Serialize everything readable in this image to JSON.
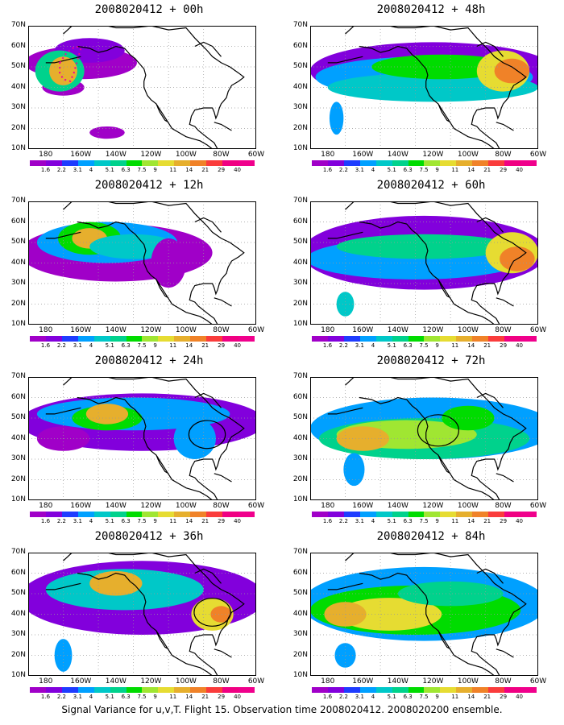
{
  "panels": [
    {
      "title": "2008020412 + 00h"
    },
    {
      "title": "2008020412 + 48h"
    },
    {
      "title": "2008020412 + 12h"
    },
    {
      "title": "2008020412 + 60h"
    },
    {
      "title": "2008020412 + 24h"
    },
    {
      "title": "2008020412 + 72h"
    },
    {
      "title": "2008020412 + 36h"
    },
    {
      "title": "2008020412 + 84h"
    }
  ],
  "lat_labels": [
    "70N",
    "60N",
    "50N",
    "40N",
    "30N",
    "20N",
    "10N"
  ],
  "lon_labels": [
    "180",
    "160W",
    "140W",
    "120W",
    "100W",
    "80W",
    "60W"
  ],
  "colorbar": {
    "labels": [
      "1.6",
      "2.2",
      "3.1",
      "4",
      "5.1",
      "6.3",
      "7.5",
      "9",
      "11",
      "14",
      "21",
      "29",
      "40"
    ],
    "colors": [
      "#a000c8",
      "#8200dc",
      "#1e3cff",
      "#00a0ff",
      "#00c8c8",
      "#00d28c",
      "#00dc00",
      "#a0e632",
      "#e6dc32",
      "#e6af2d",
      "#f08228",
      "#fa3c3c",
      "#f00082"
    ]
  },
  "caption": "Signal Variance for u,v,T. Flight 15. Observation time 2008020412. 2008020200 ensemble."
}
